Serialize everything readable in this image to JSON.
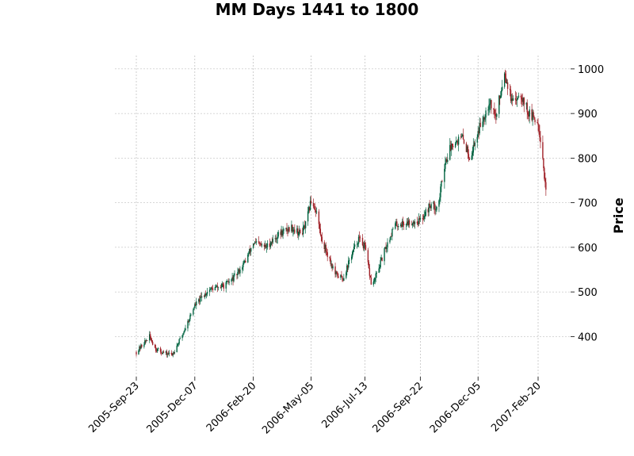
{
  "chart_data": {
    "type": "candlestick",
    "title": "MM Days 1441 to 1800",
    "xlabel": "",
    "ylabel": "Price",
    "ylim": [
      310,
      1030
    ],
    "y_ticks": [
      400,
      500,
      600,
      700,
      800,
      900,
      1000
    ],
    "x_tick_labels": [
      "2005-Sep-23",
      "2005-Dec-07",
      "2006-Feb-20",
      "2006-May-05",
      "2006-Jul-13",
      "2006-Sep-22",
      "2006-Dec-05",
      "2007-Feb-20"
    ],
    "grid": true,
    "up_color": "#006340",
    "down_color": "#a02128",
    "closing_path": [
      [
        "2005-Sep-23",
        365
      ],
      [
        "2005-Oct-05",
        390
      ],
      [
        "2005-Oct-10",
        400
      ],
      [
        "2005-Oct-18",
        372
      ],
      [
        "2005-Oct-30",
        362
      ],
      [
        "2005-Nov-08",
        360
      ],
      [
        "2005-Nov-20",
        400
      ],
      [
        "2005-Dec-07",
        470
      ],
      [
        "2005-Dec-25",
        505
      ],
      [
        "2006-Jan-15",
        515
      ],
      [
        "2006-Jan-28",
        535
      ],
      [
        "2006-Feb-10",
        570
      ],
      [
        "2006-Feb-20",
        610
      ],
      [
        "2006-Mar-08",
        600
      ],
      [
        "2006-Mar-25",
        630
      ],
      [
        "2006-Apr-10",
        645
      ],
      [
        "2006-Apr-22",
        630
      ],
      [
        "2006-Apr-28",
        650
      ],
      [
        "2006-May-05",
        705
      ],
      [
        "2006-May-12",
        680
      ],
      [
        "2006-May-18",
        620
      ],
      [
        "2006-May-25",
        590
      ],
      [
        "2006-Jun-05",
        540
      ],
      [
        "2006-Jun-15",
        530
      ],
      [
        "2006-Jun-25",
        580
      ],
      [
        "2006-Jul-05",
        620
      ],
      [
        "2006-Jul-13",
        600
      ],
      [
        "2006-Jul-22",
        510
      ],
      [
        "2006-Aug-01",
        560
      ],
      [
        "2006-Aug-10",
        605
      ],
      [
        "2006-Aug-20",
        650
      ],
      [
        "2006-Sep-05",
        655
      ],
      [
        "2006-Sep-22",
        660
      ],
      [
        "2006-Oct-05",
        695
      ],
      [
        "2006-Oct-15",
        690
      ],
      [
        "2006-Oct-22",
        780
      ],
      [
        "2006-Nov-02",
        835
      ],
      [
        "2006-Nov-15",
        845
      ],
      [
        "2006-Nov-25",
        800
      ],
      [
        "2006-Dec-05",
        860
      ],
      [
        "2006-Dec-20",
        930
      ],
      [
        "2006-Dec-28",
        890
      ],
      [
        "2007-Jan-08",
        995
      ],
      [
        "2007-Jan-18",
        920
      ],
      [
        "2007-Jan-28",
        950
      ],
      [
        "2007-Feb-08",
        900
      ],
      [
        "2007-Feb-20",
        880
      ],
      [
        "2007-Feb-25",
        820
      ],
      [
        "2007-Mar-02",
        720
      ]
    ]
  }
}
